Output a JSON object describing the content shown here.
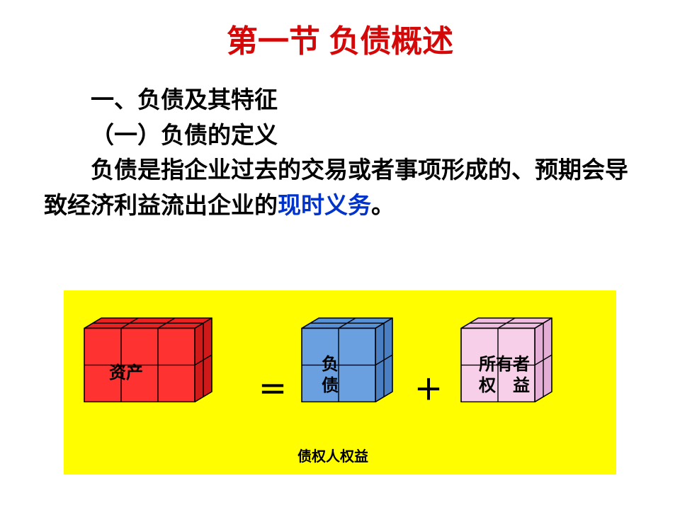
{
  "title": {
    "text": "第一节  负债概述",
    "color": "#d40808",
    "fontsize": 44
  },
  "body": {
    "fontsize": 33,
    "color_main": "#000000",
    "color_accent": "#0033cc",
    "heading": "一、负债及其特征",
    "subheading": "（一）负债的定义",
    "paragraph_plain": "负债是指企业过去的交易或者事项形成的、预期会导致经济利益流出企业的",
    "paragraph_accent": "现时义务",
    "paragraph_tail": "。"
  },
  "diagram": {
    "background": "#fffd00",
    "stroke": "#000000",
    "equals": "＝",
    "plus": "＋",
    "op_fontsize": 40,
    "caption": {
      "text": "债权人权益",
      "fontsize": 20
    },
    "cubes": {
      "assets": {
        "label": "资产",
        "face_color": "#ff3232",
        "top_color": "#e82222",
        "side_color": "#d01a1a",
        "cols": 3,
        "rows": 2,
        "layers": 2
      },
      "liabilities": {
        "label_line1": "负",
        "label_line2": "债",
        "face_color": "#6aa0e0",
        "top_color": "#5890d5",
        "side_color": "#4a7fc4",
        "cols": 2,
        "rows": 2,
        "layers": 2
      },
      "equity": {
        "label_line1": "所有者",
        "label_line2": "权　益",
        "face_color": "#f7cfe8",
        "top_color": "#eebde0",
        "side_color": "#e4aed6",
        "cols": 2,
        "rows": 2,
        "layers": 2
      }
    },
    "label_fontsize": 24,
    "unit": 52,
    "depth": 24
  }
}
